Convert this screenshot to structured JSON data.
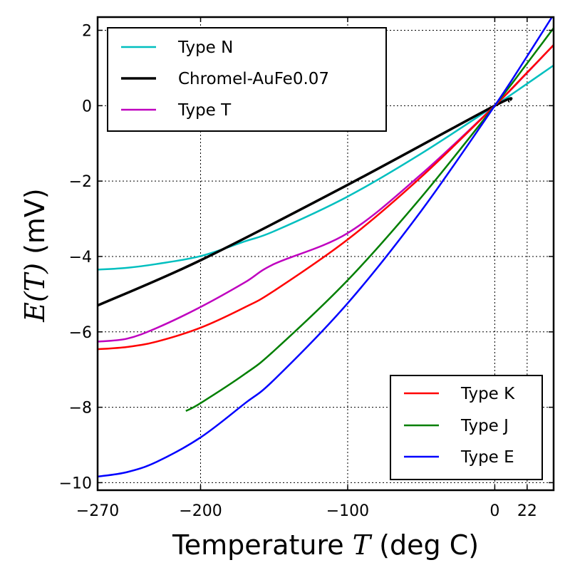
{
  "chart_data": {
    "type": "line",
    "xlabel_prefix": "Temperature ",
    "xlabel_symbol": "T",
    "xlabel_suffix": " (deg C)",
    "ylabel_symbol": "E(T)",
    "ylabel_suffix": " (mV)",
    "xlim": [
      -270,
      40
    ],
    "ylim": [
      -10.2,
      2.35
    ],
    "grid": true,
    "x_ticks": [
      {
        "value": -270,
        "label": "−270"
      },
      {
        "value": -200,
        "label": "−200"
      },
      {
        "value": -100,
        "label": "−100"
      },
      {
        "value": 0,
        "label": "0"
      },
      {
        "value": 22,
        "label": "22"
      }
    ],
    "y_ticks": [
      {
        "value": 2,
        "label": "2"
      },
      {
        "value": 0,
        "label": "0"
      },
      {
        "value": -2,
        "label": "−2"
      },
      {
        "value": -4,
        "label": "−4"
      },
      {
        "value": -6,
        "label": "−6"
      },
      {
        "value": -8,
        "label": "−8"
      },
      {
        "value": -10,
        "label": "−10"
      }
    ],
    "legend_upper_left": [
      "Type N",
      "Chromel-AuFe0.07",
      "Type T"
    ],
    "legend_lower_right": [
      "Type K",
      "Type J",
      "Type E"
    ],
    "series": [
      {
        "name": "Type N",
        "color": "#00bfbf",
        "width": 2.5,
        "x": [
          -270,
          -250,
          -230,
          -200,
          -170,
          -150,
          -100,
          -50,
          0,
          20,
          40
        ],
        "y": [
          -4.35,
          -4.3,
          -4.2,
          -3.99,
          -3.6,
          -3.33,
          -2.41,
          -1.27,
          0,
          0.53,
          1.07
        ]
      },
      {
        "name": "Chromel-AuFe0.07",
        "color": "#000000",
        "width": 3.5,
        "x": [
          -270,
          -200,
          -100,
          0,
          10
        ],
        "y": [
          -5.3,
          -4.1,
          -2.1,
          0,
          0.12
        ]
      },
      {
        "name": "Type T",
        "color": "#bf00bf",
        "width": 2.5,
        "x": [
          -270,
          -250,
          -230,
          -200,
          -170,
          -150,
          -100,
          -50,
          0,
          20,
          40
        ],
        "y": [
          -6.26,
          -6.18,
          -5.9,
          -5.34,
          -4.69,
          -4.2,
          -3.38,
          -1.82,
          0,
          0.79,
          1.61
        ]
      },
      {
        "name": "Type K",
        "color": "#ff0000",
        "width": 2.5,
        "x": [
          -270,
          -250,
          -230,
          -200,
          -170,
          -150,
          -100,
          -50,
          0,
          20,
          40
        ],
        "y": [
          -6.46,
          -6.4,
          -6.26,
          -5.89,
          -5.35,
          -4.91,
          -3.55,
          -1.89,
          0,
          0.8,
          1.61
        ]
      },
      {
        "name": "Type J",
        "color": "#007f00",
        "width": 2.5,
        "x": [
          -210,
          -200,
          -170,
          -150,
          -100,
          -50,
          0,
          20,
          40
        ],
        "y": [
          -8.1,
          -7.89,
          -7.12,
          -6.5,
          -4.63,
          -2.43,
          0,
          1.02,
          2.06
        ]
      },
      {
        "name": "Type E",
        "color": "#0000ff",
        "width": 2.5,
        "x": [
          -270,
          -250,
          -230,
          -200,
          -170,
          -150,
          -100,
          -50,
          0,
          20,
          40
        ],
        "y": [
          -9.84,
          -9.72,
          -9.45,
          -8.8,
          -7.9,
          -7.27,
          -5.24,
          -2.79,
          0,
          1.19,
          2.42
        ]
      }
    ]
  }
}
